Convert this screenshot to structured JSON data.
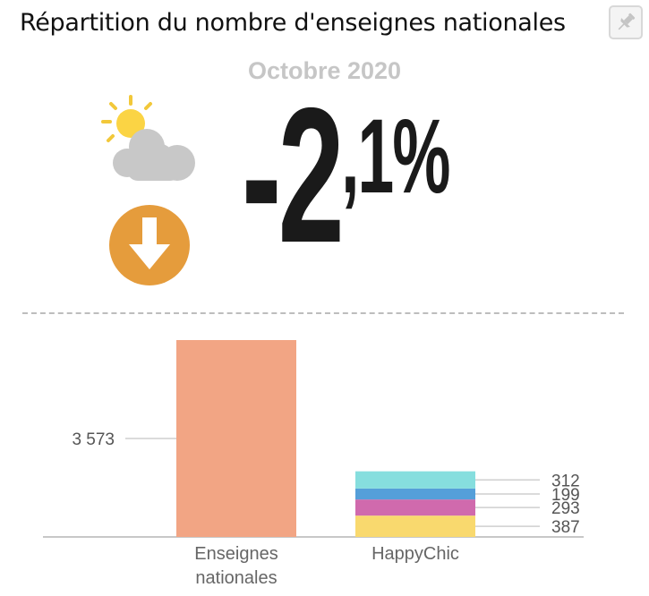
{
  "header": {
    "title": "Répartition du nombre d'enseignes nationales",
    "pin_icon": "pin-icon"
  },
  "summary": {
    "period": "Octobre 2020",
    "change_int": "-2",
    "change_dec": ",1%",
    "weather_icon": "sun-behind-cloud-icon",
    "trend_icon": "arrow-down-circle-icon",
    "trend_color": "#e59c3c"
  },
  "chart_data": {
    "type": "bar",
    "stacked": true,
    "categories": [
      "Enseignes nationales",
      "HappyChic"
    ],
    "category_labels": [
      [
        "Enseignes",
        "nationales"
      ],
      [
        "HappyChic"
      ]
    ],
    "bars": [
      {
        "category": "Enseignes nationales",
        "segments": [
          {
            "value": 3573,
            "label": "3 573",
            "color": "#f2a584"
          }
        ]
      },
      {
        "category": "HappyChic",
        "segments": [
          {
            "value": 387,
            "label": "387",
            "color": "#f9d96e"
          },
          {
            "value": 293,
            "label": "293",
            "color": "#d06aad"
          },
          {
            "value": 199,
            "label": "199",
            "color": "#559fd9"
          },
          {
            "value": 312,
            "label": "312",
            "color": "#86dede"
          }
        ]
      }
    ],
    "grid": false,
    "legend": "none"
  }
}
